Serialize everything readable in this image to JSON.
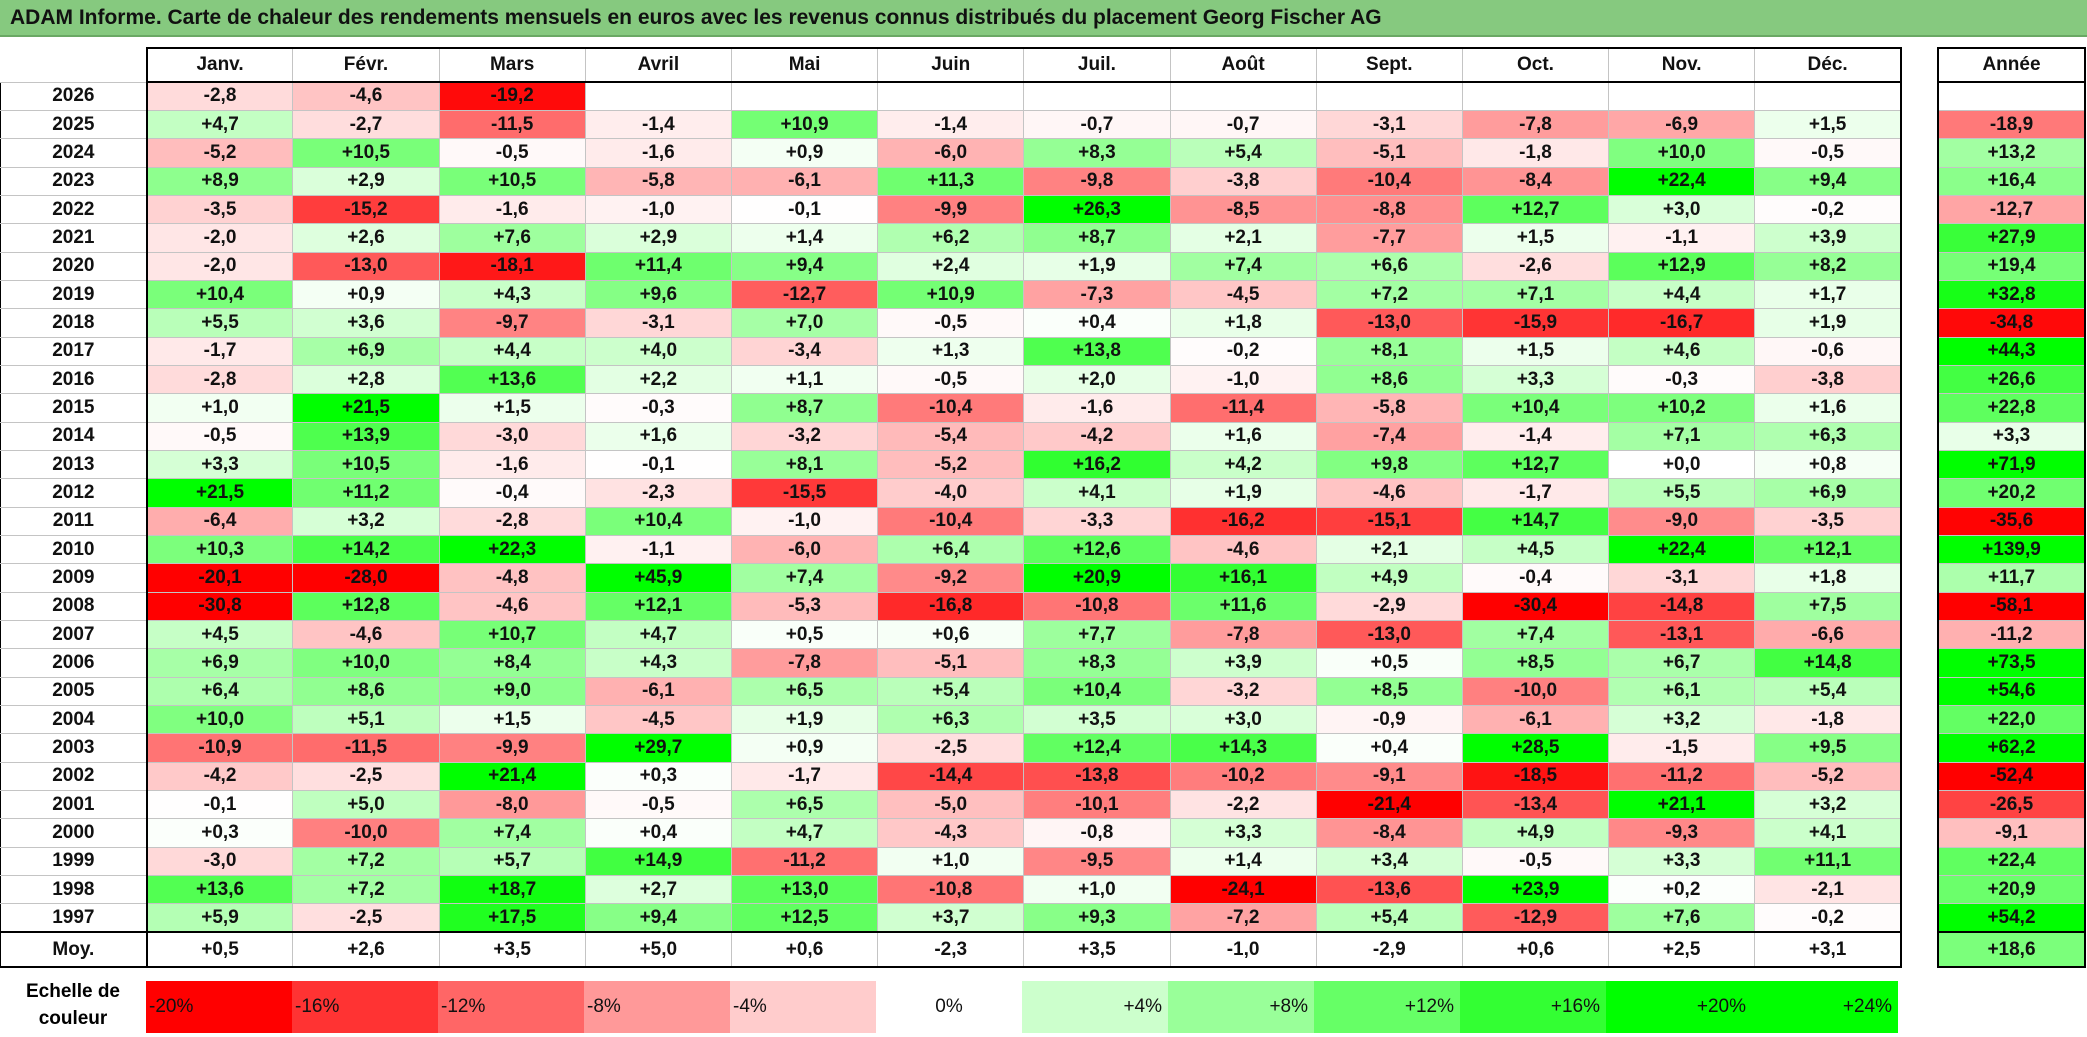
{
  "title": "ADAM Informe. Carte de chaleur des rendements mensuels en euros avec les revenus connus distribués du placement Georg Fischer AG",
  "chart_data": {
    "type": "heatmap",
    "title": "ADAM Informe. Carte de chaleur des rendements mensuels en euros avec les revenus connus distribués du placement Georg Fischer AG",
    "months": [
      "Janv.",
      "Févr.",
      "Mars",
      "Avril",
      "Mai",
      "Juin",
      "Juil.",
      "Août",
      "Sept.",
      "Oct.",
      "Nov.",
      "Déc."
    ],
    "year_column_label": "Année",
    "rows": [
      {
        "year": "2026",
        "values": [
          "-2,8",
          "-4,6",
          "-19,2",
          "",
          "",
          "",
          "",
          "",
          "",
          "",
          "",
          ""
        ],
        "annual": ""
      },
      {
        "year": "2025",
        "values": [
          "+4,7",
          "-2,7",
          "-11,5",
          "-1,4",
          "+10,9",
          "-1,4",
          "-0,7",
          "-0,7",
          "-3,1",
          "-7,8",
          "-6,9",
          "+1,5"
        ],
        "annual": "-18,9"
      },
      {
        "year": "2024",
        "values": [
          "-5,2",
          "+10,5",
          "-0,5",
          "-1,6",
          "+0,9",
          "-6,0",
          "+8,3",
          "+5,4",
          "-5,1",
          "-1,8",
          "+10,0",
          "-0,5"
        ],
        "annual": "+13,2"
      },
      {
        "year": "2023",
        "values": [
          "+8,9",
          "+2,9",
          "+10,5",
          "-5,8",
          "-6,1",
          "+11,3",
          "-9,8",
          "-3,8",
          "-10,4",
          "-8,4",
          "+22,4",
          "+9,4"
        ],
        "annual": "+16,4"
      },
      {
        "year": "2022",
        "values": [
          "-3,5",
          "-15,2",
          "-1,6",
          "-1,0",
          "-0,1",
          "-9,9",
          "+26,3",
          "-8,5",
          "-8,8",
          "+12,7",
          "+3,0",
          "-0,2"
        ],
        "annual": "-12,7"
      },
      {
        "year": "2021",
        "values": [
          "-2,0",
          "+2,6",
          "+7,6",
          "+2,9",
          "+1,4",
          "+6,2",
          "+8,7",
          "+2,1",
          "-7,7",
          "+1,5",
          "-1,1",
          "+3,9"
        ],
        "annual": "+27,9"
      },
      {
        "year": "2020",
        "values": [
          "-2,0",
          "-13,0",
          "-18,1",
          "+11,4",
          "+9,4",
          "+2,4",
          "+1,9",
          "+7,4",
          "+6,6",
          "-2,6",
          "+12,9",
          "+8,2"
        ],
        "annual": "+19,4"
      },
      {
        "year": "2019",
        "values": [
          "+10,4",
          "+0,9",
          "+4,3",
          "+9,6",
          "-12,7",
          "+10,9",
          "-7,3",
          "-4,5",
          "+7,2",
          "+7,1",
          "+4,4",
          "+1,7"
        ],
        "annual": "+32,8"
      },
      {
        "year": "2018",
        "values": [
          "+5,5",
          "+3,6",
          "-9,7",
          "-3,1",
          "+7,0",
          "-0,5",
          "+0,4",
          "+1,8",
          "-13,0",
          "-15,9",
          "-16,7",
          "+1,9"
        ],
        "annual": "-34,8"
      },
      {
        "year": "2017",
        "values": [
          "-1,7",
          "+6,9",
          "+4,4",
          "+4,0",
          "-3,4",
          "+1,3",
          "+13,8",
          "-0,2",
          "+8,1",
          "+1,5",
          "+4,6",
          "-0,6"
        ],
        "annual": "+44,3"
      },
      {
        "year": "2016",
        "values": [
          "-2,8",
          "+2,8",
          "+13,6",
          "+2,2",
          "+1,1",
          "-0,5",
          "+2,0",
          "-1,0",
          "+8,6",
          "+3,3",
          "-0,3",
          "-3,8"
        ],
        "annual": "+26,6"
      },
      {
        "year": "2015",
        "values": [
          "+1,0",
          "+21,5",
          "+1,5",
          "-0,3",
          "+8,7",
          "-10,4",
          "-1,6",
          "-11,4",
          "-5,8",
          "+10,4",
          "+10,2",
          "+1,6"
        ],
        "annual": "+22,8"
      },
      {
        "year": "2014",
        "values": [
          "-0,5",
          "+13,9",
          "-3,0",
          "+1,6",
          "-3,2",
          "-5,4",
          "-4,2",
          "+1,6",
          "-7,4",
          "-1,4",
          "+7,1",
          "+6,3"
        ],
        "annual": "+3,3"
      },
      {
        "year": "2013",
        "values": [
          "+3,3",
          "+10,5",
          "-1,6",
          "-0,1",
          "+8,1",
          "-5,2",
          "+16,2",
          "+4,2",
          "+9,8",
          "+12,7",
          "+0,0",
          "+0,8"
        ],
        "annual": "+71,9"
      },
      {
        "year": "2012",
        "values": [
          "+21,5",
          "+11,2",
          "-0,4",
          "-2,3",
          "-15,5",
          "-4,0",
          "+4,1",
          "+1,9",
          "-4,6",
          "-1,7",
          "+5,5",
          "+6,9"
        ],
        "annual": "+20,2"
      },
      {
        "year": "2011",
        "values": [
          "-6,4",
          "+3,2",
          "-2,8",
          "+10,4",
          "-1,0",
          "-10,4",
          "-3,3",
          "-16,2",
          "-15,1",
          "+14,7",
          "-9,0",
          "-3,5"
        ],
        "annual": "-35,6"
      },
      {
        "year": "2010",
        "values": [
          "+10,3",
          "+14,2",
          "+22,3",
          "-1,1",
          "-6,0",
          "+6,4",
          "+12,6",
          "-4,6",
          "+2,1",
          "+4,5",
          "+22,4",
          "+12,1"
        ],
        "annual": "+139,9"
      },
      {
        "year": "2009",
        "values": [
          "-20,1",
          "-28,0",
          "-4,8",
          "+45,9",
          "+7,4",
          "-9,2",
          "+20,9",
          "+16,1",
          "+4,9",
          "-0,4",
          "-3,1",
          "+1,8"
        ],
        "annual": "+11,7"
      },
      {
        "year": "2008",
        "values": [
          "-30,8",
          "+12,8",
          "-4,6",
          "+12,1",
          "-5,3",
          "-16,8",
          "-10,8",
          "+11,6",
          "-2,9",
          "-30,4",
          "-14,8",
          "+7,5"
        ],
        "annual": "-58,1"
      },
      {
        "year": "2007",
        "values": [
          "+4,5",
          "-4,6",
          "+10,7",
          "+4,7",
          "+0,5",
          "+0,6",
          "+7,7",
          "-7,8",
          "-13,0",
          "+7,4",
          "-13,1",
          "-6,6"
        ],
        "annual": "-11,2"
      },
      {
        "year": "2006",
        "values": [
          "+6,9",
          "+10,0",
          "+8,4",
          "+4,3",
          "-7,8",
          "-5,1",
          "+8,3",
          "+3,9",
          "+0,5",
          "+8,5",
          "+6,7",
          "+14,8"
        ],
        "annual": "+73,5"
      },
      {
        "year": "2005",
        "values": [
          "+6,4",
          "+8,6",
          "+9,0",
          "-6,1",
          "+6,5",
          "+5,4",
          "+10,4",
          "-3,2",
          "+8,5",
          "-10,0",
          "+6,1",
          "+5,4"
        ],
        "annual": "+54,6"
      },
      {
        "year": "2004",
        "values": [
          "+10,0",
          "+5,1",
          "+1,5",
          "-4,5",
          "+1,9",
          "+6,3",
          "+3,5",
          "+3,0",
          "-0,9",
          "-6,1",
          "+3,2",
          "-1,8"
        ],
        "annual": "+22,0"
      },
      {
        "year": "2003",
        "values": [
          "-10,9",
          "-11,5",
          "-9,9",
          "+29,7",
          "+0,9",
          "-2,5",
          "+12,4",
          "+14,3",
          "+0,4",
          "+28,5",
          "-1,5",
          "+9,5"
        ],
        "annual": "+62,2"
      },
      {
        "year": "2002",
        "values": [
          "-4,2",
          "-2,5",
          "+21,4",
          "+0,3",
          "-1,7",
          "-14,4",
          "-13,8",
          "-10,2",
          "-9,1",
          "-18,5",
          "-11,2",
          "-5,2"
        ],
        "annual": "-52,4"
      },
      {
        "year": "2001",
        "values": [
          "-0,1",
          "+5,0",
          "-8,0",
          "-0,5",
          "+6,5",
          "-5,0",
          "-10,1",
          "-2,2",
          "-21,4",
          "-13,4",
          "+21,1",
          "+3,2"
        ],
        "annual": "-26,5"
      },
      {
        "year": "2000",
        "values": [
          "+0,3",
          "-10,0",
          "+7,4",
          "+0,4",
          "+4,7",
          "-4,3",
          "-0,8",
          "+3,3",
          "-8,4",
          "+4,9",
          "-9,3",
          "+4,1"
        ],
        "annual": "-9,1"
      },
      {
        "year": "1999",
        "values": [
          "-3,0",
          "+7,2",
          "+5,7",
          "+14,9",
          "-11,2",
          "+1,0",
          "-9,5",
          "+1,4",
          "+3,4",
          "-0,5",
          "+3,3",
          "+11,1"
        ],
        "annual": "+22,4"
      },
      {
        "year": "1998",
        "values": [
          "+13,6",
          "+7,2",
          "+18,7",
          "+2,7",
          "+13,0",
          "-10,8",
          "+1,0",
          "-24,1",
          "-13,6",
          "+23,9",
          "+0,2",
          "-2,1"
        ],
        "annual": "+20,9"
      },
      {
        "year": "1997",
        "values": [
          "+5,9",
          "-2,5",
          "+17,5",
          "+9,4",
          "+12,5",
          "+3,7",
          "+9,3",
          "-7,2",
          "+5,4",
          "-12,9",
          "+7,6",
          "-0,2"
        ],
        "annual": "+54,2"
      }
    ],
    "average": {
      "label": "Moy.",
      "values": [
        "+0,5",
        "+2,6",
        "+3,5",
        "+5,0",
        "+0,6",
        "-2,3",
        "+3,5",
        "-1,0",
        "-2,9",
        "+0,6",
        "+2,5",
        "+3,1"
      ],
      "annual": "+18,6"
    },
    "legend": {
      "label_line1": "Echelle de",
      "label_line2": "couleur",
      "items": [
        {
          "text": "-20%",
          "color": "#ff0000"
        },
        {
          "text": "-16%",
          "color": "#ff3333"
        },
        {
          "text": "-12%",
          "color": "#ff6666"
        },
        {
          "text": "-8%",
          "color": "#ff9999"
        },
        {
          "text": "-4%",
          "color": "#ffcccc"
        },
        {
          "text": "0%",
          "color": "#ffffff"
        },
        {
          "text": "+4%",
          "color": "#ccffcc"
        },
        {
          "text": "+8%",
          "color": "#99ff99"
        },
        {
          "text": "+12%",
          "color": "#66ff66"
        },
        {
          "text": "+16%",
          "color": "#33ff33"
        },
        {
          "text": "+20%",
          "color": "#00ff00"
        },
        {
          "text": "+24%",
          "color": "#00ff00"
        }
      ]
    }
  },
  "colors": {
    "title_bar": "#86c97f",
    "negative_max": "#ff0000",
    "positive_max": "#00ff00",
    "neutral": "#ffffff"
  }
}
